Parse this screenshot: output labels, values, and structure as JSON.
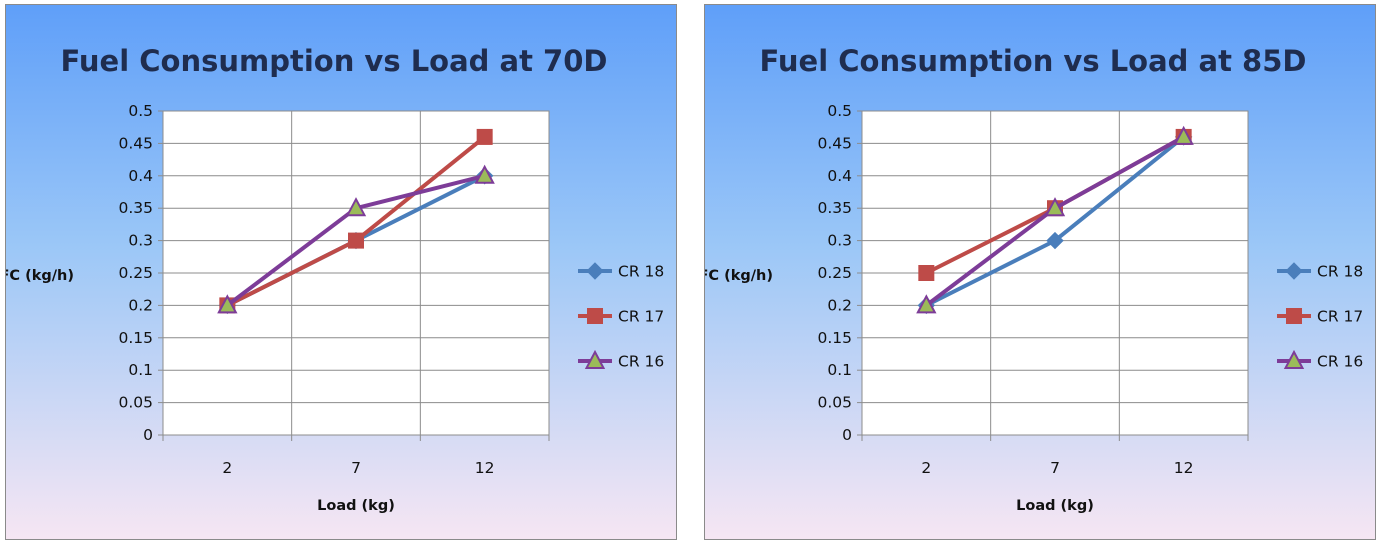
{
  "chart_data": [
    {
      "type": "line",
      "title": "Fuel Consumption vs Load at 70D",
      "xlabel": "Load (kg)",
      "ylabel": "FC (kg/h)",
      "categories": [
        "2",
        "7",
        "12"
      ],
      "ylim": [
        0,
        0.5
      ],
      "yticks": [
        "0",
        "0.05",
        "0.1",
        "0.15",
        "0.2",
        "0.25",
        "0.3",
        "0.35",
        "0.4",
        "0.45",
        "0.5"
      ],
      "grid": true,
      "legend_position": "right",
      "series": [
        {
          "name": "CR 18",
          "values": [
            0.2,
            0.3,
            0.4
          ],
          "color": "#4a7ebb",
          "marker": "diamond"
        },
        {
          "name": "CR 17",
          "values": [
            0.2,
            0.3,
            0.46
          ],
          "color": "#be4b48",
          "marker": "square"
        },
        {
          "name": "CR 16",
          "values": [
            0.2,
            0.35,
            0.4
          ],
          "color": "#7d3c98",
          "marker": "triangle",
          "marker_fill": "#9bbb59"
        }
      ]
    },
    {
      "type": "line",
      "title": "Fuel Consumption vs Load at 85D",
      "xlabel": "Load (kg)",
      "ylabel": "FC (kg/h)",
      "categories": [
        "2",
        "7",
        "12"
      ],
      "ylim": [
        0,
        0.5
      ],
      "yticks": [
        "0",
        "0.05",
        "0.1",
        "0.15",
        "0.2",
        "0.25",
        "0.3",
        "0.35",
        "0.4",
        "0.45",
        "0.5"
      ],
      "grid": true,
      "legend_position": "right",
      "series": [
        {
          "name": "CR 18",
          "values": [
            0.2,
            0.3,
            0.46
          ],
          "color": "#4a7ebb",
          "marker": "diamond"
        },
        {
          "name": "CR 17",
          "values": [
            0.25,
            0.35,
            0.46
          ],
          "color": "#be4b48",
          "marker": "square"
        },
        {
          "name": "CR 16",
          "values": [
            0.2,
            0.35,
            0.46
          ],
          "color": "#7d3c98",
          "marker": "triangle",
          "marker_fill": "#9bbb59"
        }
      ]
    }
  ]
}
